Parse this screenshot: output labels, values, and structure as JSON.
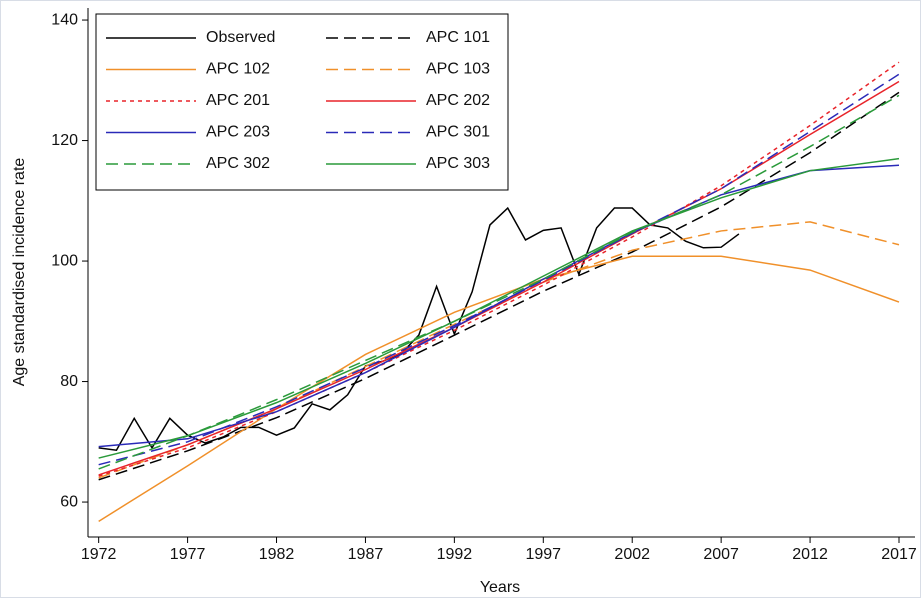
{
  "chart_data": {
    "type": "line",
    "xlabel": "Years",
    "ylabel": "Age standardised incidence rate",
    "xlim": [
      1971.4,
      2017.9
    ],
    "ylim": [
      54.2,
      142
    ],
    "xticks": [
      1972,
      1977,
      1982,
      1987,
      1992,
      1997,
      2002,
      2007,
      2012,
      2017
    ],
    "yticks": [
      60,
      80,
      100,
      120,
      140
    ],
    "legend": "upper left",
    "series": [
      {
        "name": "Observed",
        "color": "#000000",
        "dash": "solid",
        "x": [
          1972,
          1973,
          1974,
          1975,
          1976,
          1977,
          1978,
          1979,
          1980,
          1981,
          1982,
          1983,
          1984,
          1985,
          1986,
          1987,
          1988,
          1989,
          1990,
          1991,
          1992,
          1993,
          1994,
          1995,
          1996,
          1997,
          1998,
          1999,
          2000,
          2001,
          2002,
          2003,
          2004,
          2005,
          2006,
          2007,
          2008
        ],
        "values": [
          69.0,
          68.6,
          73.9,
          69.0,
          73.9,
          71.1,
          69.8,
          70.8,
          72.4,
          72.4,
          71.1,
          72.3,
          76.3,
          75.3,
          77.8,
          82.6,
          83.4,
          84.6,
          87.7,
          95.8,
          87.9,
          94.9,
          106.0,
          108.8,
          103.5,
          105.1,
          105.5,
          97.8,
          105.5,
          108.8,
          108.8,
          106.0,
          105.5,
          103.3,
          102.2,
          102.3,
          104.5
        ]
      },
      {
        "name": "APC 101",
        "color": "#000000",
        "dash": "dashed",
        "x": [
          1972,
          1977,
          1982,
          1987,
          1992,
          1997,
          2002,
          2007,
          2012,
          2017
        ],
        "values": [
          63.7,
          68.5,
          74,
          80.5,
          87.7,
          95,
          101.5,
          109,
          118,
          128
        ]
      },
      {
        "name": "APC 102",
        "color": "#f0902a",
        "dash": "solid",
        "x": [
          1972,
          1977,
          1982,
          1987,
          1992,
          1997,
          2002,
          2007,
          2012,
          2017
        ],
        "values": [
          56.8,
          66,
          75.5,
          84.5,
          91.5,
          97,
          100.8,
          100.8,
          98.5,
          93.2
        ]
      },
      {
        "name": "APC 103",
        "color": "#f0902a",
        "dash": "dashed",
        "x": [
          1972,
          1977,
          1982,
          1987,
          1992,
          1997,
          2002,
          2007,
          2012,
          2017
        ],
        "values": [
          64,
          69.5,
          75.5,
          82.5,
          89.5,
          96.5,
          101.8,
          105,
          106.5,
          102.7
        ]
      },
      {
        "name": "APC 201",
        "color": "#e8242a",
        "dash": "dotted",
        "x": [
          1972,
          1977,
          1982,
          1987,
          1992,
          1997,
          2002,
          2007,
          2012,
          2017
        ],
        "values": [
          64.3,
          69,
          75,
          81.5,
          88.5,
          96,
          104,
          112.5,
          122.5,
          133
        ]
      },
      {
        "name": "APC 202",
        "color": "#e8242a",
        "dash": "solid",
        "x": [
          1972,
          1977,
          1982,
          1987,
          1992,
          1997,
          2002,
          2007,
          2012,
          2017
        ],
        "values": [
          64.5,
          69.5,
          75.5,
          82,
          89,
          96.5,
          104.5,
          112,
          121,
          129.8
        ]
      },
      {
        "name": "APC 203",
        "color": "#2a2ab8",
        "dash": "solid",
        "x": [
          1972,
          1977,
          1982,
          1987,
          1992,
          1997,
          2002,
          2007,
          2012,
          2017
        ],
        "values": [
          69.2,
          70.5,
          75,
          81.5,
          89,
          97,
          104.7,
          111,
          115,
          115.9
        ]
      },
      {
        "name": "APC 301",
        "color": "#2a2ab8",
        "dash": "dashed",
        "x": [
          1972,
          1977,
          1982,
          1987,
          1992,
          1997,
          2002,
          2007,
          2012,
          2017
        ],
        "values": [
          66.2,
          70,
          75.8,
          82.3,
          89.3,
          96.8,
          104.6,
          112,
          121.5,
          131
        ]
      },
      {
        "name": "APC 302",
        "color": "#2a9a3a",
        "dash": "dashed",
        "x": [
          1972,
          1977,
          1982,
          1987,
          1992,
          1997,
          2002,
          2007,
          2012,
          2017
        ],
        "values": [
          65.5,
          71,
          77,
          83.5,
          90,
          97,
          104.8,
          111,
          119,
          127.5
        ]
      },
      {
        "name": "APC 303",
        "color": "#2a9a3a",
        "dash": "solid",
        "x": [
          1972,
          1977,
          1982,
          1987,
          1992,
          1997,
          2002,
          2007,
          2012,
          2017
        ],
        "values": [
          67.3,
          71,
          76.5,
          83,
          90,
          97.5,
          105,
          110.5,
          115,
          117
        ]
      }
    ]
  }
}
